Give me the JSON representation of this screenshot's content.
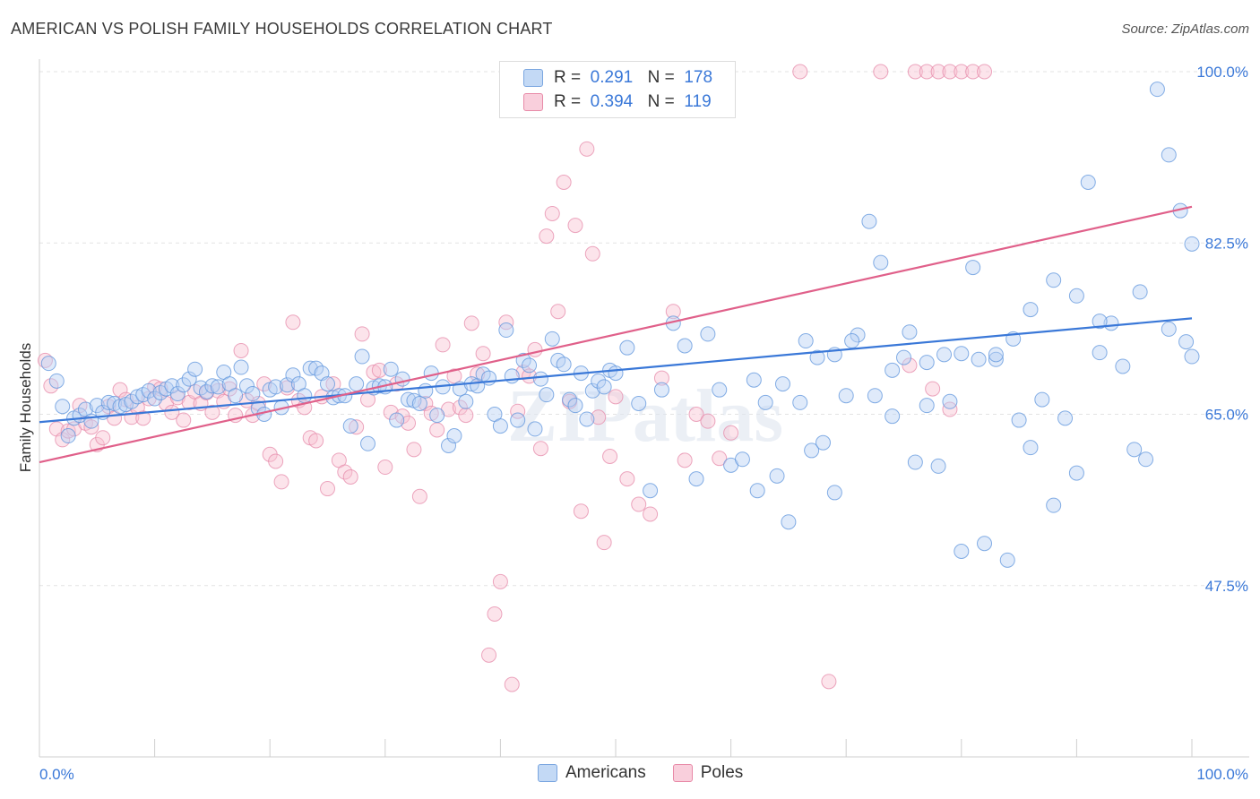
{
  "title": "AMERICAN VS POLISH FAMILY HOUSEHOLDS CORRELATION CHART",
  "source": "Source: ZipAtlas.com",
  "watermark": "ZIPatlas",
  "legend": {
    "r_label": "R =",
    "n_label": "N =",
    "rows": [
      {
        "r": "0.291",
        "n": "178",
        "color": "#a8c8f0"
      },
      {
        "r": "0.394",
        "n": "119",
        "color": "#f5b8cb"
      }
    ]
  },
  "bottom_legend": [
    {
      "label": "Americans",
      "color": "#a8c8f0"
    },
    {
      "label": "Poles",
      "color": "#f5b8cb"
    }
  ],
  "chart_data": {
    "type": "scatter",
    "title": "AMERICAN VS POLISH FAMILY HOUSEHOLDS CORRELATION CHART",
    "xlabel": "",
    "ylabel": "Family Households",
    "xlim": [
      0,
      100
    ],
    "ylim": [
      30,
      100.0
    ],
    "x_tick_labels": [
      "0.0%",
      "100.0%"
    ],
    "y_ticks": [
      47.5,
      65.0,
      82.5,
      100.0
    ],
    "y_tick_labels": [
      "47.5%",
      "65.0%",
      "82.5%",
      "100.0%"
    ],
    "grid": "horizontal dashed",
    "legend_position": "top-center",
    "series": [
      {
        "name": "Americans",
        "color": "#3a78d8",
        "fill": "#a8c8f0",
        "trend": [
          [
            0,
            64.2
          ],
          [
            100,
            74.8
          ]
        ],
        "points": [
          [
            0.8,
            70.2
          ],
          [
            1.5,
            68.4
          ],
          [
            2,
            65.8
          ],
          [
            2.5,
            62.8
          ],
          [
            3,
            64.6
          ],
          [
            3.5,
            64.9
          ],
          [
            4,
            65.5
          ],
          [
            4.5,
            64.3
          ],
          [
            5,
            65.9
          ],
          [
            5.5,
            65.2
          ],
          [
            6,
            66.2
          ],
          [
            6.5,
            66.1
          ],
          [
            7,
            65.8
          ],
          [
            7.5,
            66
          ],
          [
            8,
            66.3
          ],
          [
            8.5,
            66.8
          ],
          [
            9,
            67
          ],
          [
            9.5,
            67.4
          ],
          [
            10,
            66.6
          ],
          [
            10.5,
            67.2
          ],
          [
            11,
            67.6
          ],
          [
            11.5,
            67.9
          ],
          [
            12,
            67.1
          ],
          [
            12.5,
            68
          ],
          [
            13,
            68.6
          ],
          [
            13.5,
            69.6
          ],
          [
            14,
            67.7
          ],
          [
            14.5,
            67.3
          ],
          [
            15,
            67.9
          ],
          [
            15.5,
            67.8
          ],
          [
            16,
            69.3
          ],
          [
            16.5,
            68.1
          ],
          [
            17,
            66.9
          ],
          [
            17.5,
            69.8
          ],
          [
            18,
            67.9
          ],
          [
            18.5,
            67.1
          ],
          [
            19,
            65.6
          ],
          [
            19.5,
            65
          ],
          [
            20,
            67.5
          ],
          [
            20.5,
            67.8
          ],
          [
            21,
            65.7
          ],
          [
            21.5,
            68
          ],
          [
            22,
            69
          ],
          [
            22.5,
            68.1
          ],
          [
            23,
            66.9
          ],
          [
            23.5,
            69.7
          ],
          [
            24,
            69.7
          ],
          [
            24.5,
            69.2
          ],
          [
            25,
            68.1
          ],
          [
            25.5,
            66.7
          ],
          [
            26,
            66.9
          ],
          [
            26.5,
            66.9
          ],
          [
            27,
            63.8
          ],
          [
            27.5,
            68.1
          ],
          [
            28,
            70.9
          ],
          [
            28.5,
            62
          ],
          [
            29,
            67.7
          ],
          [
            29.5,
            67.9
          ],
          [
            30,
            67.8
          ],
          [
            30.5,
            69.6
          ],
          [
            31,
            64.4
          ],
          [
            31.5,
            68.6
          ],
          [
            32,
            66.5
          ],
          [
            32.5,
            66.4
          ],
          [
            33,
            66.1
          ],
          [
            33.5,
            67.4
          ],
          [
            34,
            69.2
          ],
          [
            34.5,
            64.9
          ],
          [
            35,
            67.8
          ],
          [
            35.5,
            61.8
          ],
          [
            36,
            62.8
          ],
          [
            36.5,
            67.6
          ],
          [
            37,
            66.3
          ],
          [
            37.5,
            68.1
          ],
          [
            38,
            67.9
          ],
          [
            38.5,
            69.1
          ],
          [
            39,
            68.7
          ],
          [
            39.5,
            65
          ],
          [
            40,
            63.8
          ],
          [
            40.5,
            73.6
          ],
          [
            41,
            68.9
          ],
          [
            41.5,
            64.4
          ],
          [
            42,
            70.5
          ],
          [
            42.5,
            70
          ],
          [
            43,
            63.5
          ],
          [
            43.5,
            68.6
          ],
          [
            44,
            67
          ],
          [
            44.5,
            72.7
          ],
          [
            45,
            70.5
          ],
          [
            45.5,
            70.1
          ],
          [
            46,
            66.5
          ],
          [
            46.5,
            65.9
          ],
          [
            47,
            69.2
          ],
          [
            47.5,
            64.5
          ],
          [
            48,
            67.4
          ],
          [
            48.5,
            68.4
          ],
          [
            49,
            67.8
          ],
          [
            49.5,
            69.5
          ],
          [
            50,
            69.2
          ],
          [
            51,
            71.8
          ],
          [
            52,
            66.1
          ],
          [
            53,
            57.2
          ],
          [
            54,
            67.5
          ],
          [
            55,
            74.3
          ],
          [
            56,
            72
          ],
          [
            57,
            58.4
          ],
          [
            58,
            73.2
          ],
          [
            59,
            67.5
          ],
          [
            60,
            59.8
          ],
          [
            61,
            60.4
          ],
          [
            62,
            68.5
          ],
          [
            63,
            66.2
          ],
          [
            64,
            58.7
          ],
          [
            65,
            54
          ],
          [
            66,
            66.2
          ],
          [
            67,
            61.3
          ],
          [
            68,
            62.1
          ],
          [
            69,
            57
          ],
          [
            70,
            66.9
          ],
          [
            71,
            73.1
          ],
          [
            72,
            84.7
          ],
          [
            73,
            80.5
          ],
          [
            74,
            64.8
          ],
          [
            75,
            70.8
          ],
          [
            76,
            60.1
          ],
          [
            77,
            65.9
          ],
          [
            78,
            59.7
          ],
          [
            79,
            66.3
          ],
          [
            80,
            51
          ],
          [
            81,
            80
          ],
          [
            82,
            51.8
          ],
          [
            83,
            70.6
          ],
          [
            84,
            50.1
          ],
          [
            85,
            64.4
          ],
          [
            86,
            61.6
          ],
          [
            87,
            66.5
          ],
          [
            88,
            55.7
          ],
          [
            89,
            64.6
          ],
          [
            90,
            59
          ],
          [
            91,
            88.7
          ],
          [
            92,
            71.3
          ],
          [
            93,
            74.3
          ],
          [
            94,
            69.9
          ],
          [
            95,
            61.4
          ],
          [
            96,
            60.4
          ],
          [
            97,
            98.2
          ],
          [
            98,
            73.7
          ],
          [
            99,
            85.8
          ],
          [
            100,
            70.9
          ],
          [
            62.3,
            57.2
          ],
          [
            64.5,
            68.1
          ],
          [
            66.5,
            72.5
          ],
          [
            67.5,
            70.8
          ],
          [
            69,
            71.1
          ],
          [
            70.5,
            72.5
          ],
          [
            72.5,
            66.9
          ],
          [
            74,
            69.5
          ],
          [
            75.5,
            73.4
          ],
          [
            77,
            70.3
          ],
          [
            78.5,
            71.1
          ],
          [
            80,
            71.2
          ],
          [
            81.5,
            70.6
          ],
          [
            83,
            71.1
          ],
          [
            84.5,
            72.7
          ],
          [
            86,
            75.7
          ],
          [
            88,
            78.7
          ],
          [
            90,
            77.1
          ],
          [
            92,
            74.5
          ],
          [
            95.5,
            77.5
          ],
          [
            98,
            91.5
          ],
          [
            99.5,
            72.4
          ],
          [
            100,
            82.4
          ]
        ]
      },
      {
        "name": "Poles",
        "color": "#e0608a",
        "fill": "#f5b8cb",
        "trend": [
          [
            0,
            60.1
          ],
          [
            100,
            86.2
          ]
        ],
        "points": [
          [
            0.5,
            70.5
          ],
          [
            1,
            67.9
          ],
          [
            1.5,
            63.5
          ],
          [
            2,
            62.4
          ],
          [
            2.5,
            63.3
          ],
          [
            3,
            63.5
          ],
          [
            3.5,
            65.9
          ],
          [
            4,
            64.1
          ],
          [
            4.5,
            63.7
          ],
          [
            5,
            61.9
          ],
          [
            5.5,
            62.6
          ],
          [
            6,
            65.8
          ],
          [
            6.5,
            64.6
          ],
          [
            7,
            67.5
          ],
          [
            7.5,
            66.5
          ],
          [
            8,
            64.7
          ],
          [
            8.5,
            65.7
          ],
          [
            9,
            64.6
          ],
          [
            9.5,
            66.6
          ],
          [
            10,
            67.8
          ],
          [
            10.5,
            67.6
          ],
          [
            11,
            66.1
          ],
          [
            11.5,
            65.2
          ],
          [
            12,
            66.7
          ],
          [
            12.5,
            64.4
          ],
          [
            13,
            66.2
          ],
          [
            13.5,
            67.3
          ],
          [
            14,
            66.1
          ],
          [
            14.5,
            67.2
          ],
          [
            15,
            65.2
          ],
          [
            15.5,
            67.4
          ],
          [
            16,
            66.3
          ],
          [
            16.5,
            67.6
          ],
          [
            17,
            64.9
          ],
          [
            17.5,
            71.5
          ],
          [
            18,
            66.4
          ],
          [
            18.5,
            64.9
          ],
          [
            19,
            66.1
          ],
          [
            19.5,
            68.1
          ],
          [
            20,
            60.9
          ],
          [
            20.5,
            60.2
          ],
          [
            21,
            58.1
          ],
          [
            21.5,
            67.7
          ],
          [
            22,
            74.4
          ],
          [
            22.5,
            66.4
          ],
          [
            23,
            65.7
          ],
          [
            23.5,
            62.6
          ],
          [
            24,
            62.3
          ],
          [
            24.5,
            66.8
          ],
          [
            25,
            57.4
          ],
          [
            25.5,
            68.1
          ],
          [
            26,
            60.3
          ],
          [
            26.5,
            59.1
          ],
          [
            27,
            58.6
          ],
          [
            27.5,
            63.7
          ],
          [
            28,
            73.2
          ],
          [
            28.5,
            66.5
          ],
          [
            29,
            69.3
          ],
          [
            29.5,
            69.5
          ],
          [
            30,
            59.6
          ],
          [
            30.5,
            65.2
          ],
          [
            31,
            68.1
          ],
          [
            31.5,
            64.8
          ],
          [
            32,
            64.1
          ],
          [
            32.5,
            61.4
          ],
          [
            33,
            56.6
          ],
          [
            33.5,
            66.1
          ],
          [
            34,
            65.1
          ],
          [
            34.5,
            63.4
          ],
          [
            35,
            72.1
          ],
          [
            35.5,
            65.5
          ],
          [
            36,
            68.9
          ],
          [
            36.5,
            65.7
          ],
          [
            37,
            64.9
          ],
          [
            37.5,
            74.3
          ],
          [
            38,
            69.1
          ],
          [
            38.5,
            71.2
          ],
          [
            39,
            40.4
          ],
          [
            39.5,
            44.6
          ],
          [
            40,
            47.9
          ],
          [
            40.5,
            74.4
          ],
          [
            41,
            37.4
          ],
          [
            41.5,
            65.3
          ],
          [
            42,
            69.3
          ],
          [
            42.5,
            68.9
          ],
          [
            43,
            71.6
          ],
          [
            43.5,
            61.5
          ],
          [
            44,
            83.2
          ],
          [
            44.5,
            85.5
          ],
          [
            45,
            75.5
          ],
          [
            45.5,
            88.7
          ],
          [
            46,
            66.3
          ],
          [
            46.5,
            84.3
          ],
          [
            47,
            55.1
          ],
          [
            47.5,
            92.1
          ],
          [
            48,
            81.4
          ],
          [
            48.5,
            64.7
          ],
          [
            49,
            51.9
          ],
          [
            49.5,
            60.7
          ],
          [
            50,
            66.8
          ],
          [
            51,
            58.4
          ],
          [
            52,
            55.8
          ],
          [
            53,
            54.8
          ],
          [
            54,
            68.7
          ],
          [
            55,
            75.5
          ],
          [
            56,
            60.3
          ],
          [
            57,
            65
          ],
          [
            58,
            64.3
          ],
          [
            59,
            60.5
          ],
          [
            60,
            63.1
          ],
          [
            66,
            100
          ],
          [
            73,
            100
          ],
          [
            76,
            100
          ],
          [
            77,
            100
          ],
          [
            78,
            100
          ],
          [
            79,
            100
          ],
          [
            80,
            100
          ],
          [
            81,
            100
          ],
          [
            82,
            100
          ],
          [
            68.5,
            37.7
          ],
          [
            75.5,
            70
          ],
          [
            77.5,
            67.6
          ],
          [
            79,
            65.5
          ]
        ]
      }
    ]
  }
}
